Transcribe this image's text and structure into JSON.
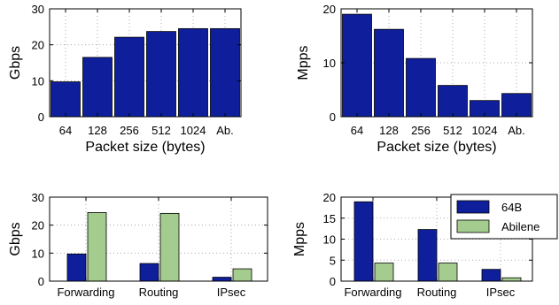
{
  "chart_data": [
    {
      "type": "bar",
      "ylabel": "Gbps",
      "xlabel": "Packet size (bytes)",
      "ylim": [
        0,
        30
      ],
      "yticks": [
        0,
        10,
        20,
        30
      ],
      "grid": true,
      "categories": [
        "64",
        "128",
        "256",
        "512",
        "1024",
        "Ab."
      ],
      "series": [
        {
          "values": [
            9.7,
            16.5,
            22.1,
            23.7,
            24.5,
            24.5
          ],
          "color": "#0f1f9c"
        }
      ]
    },
    {
      "type": "bar",
      "ylabel": "Mpps",
      "xlabel": "Packet size (bytes)",
      "ylim": [
        0,
        20
      ],
      "yticks": [
        0,
        10,
        20
      ],
      "grid": true,
      "categories": [
        "64",
        "128",
        "256",
        "512",
        "1024",
        "Ab."
      ],
      "series": [
        {
          "values": [
            19.0,
            16.2,
            10.8,
            5.8,
            3.0,
            4.3
          ],
          "color": "#0f1f9c"
        }
      ]
    },
    {
      "type": "bar",
      "ylabel": "Gbps",
      "xlabel": "",
      "ylim": [
        0,
        30
      ],
      "yticks": [
        0,
        10,
        20,
        30
      ],
      "grid": true,
      "categories": [
        "Forwarding",
        "Routing",
        "IPsec"
      ],
      "series": [
        {
          "name": "64B",
          "values": [
            9.7,
            6.3,
            1.4
          ],
          "color": "#0f1f9c"
        },
        {
          "name": "Abilene",
          "values": [
            24.5,
            24.2,
            4.4
          ],
          "color": "#a3cc8e"
        }
      ]
    },
    {
      "type": "bar",
      "ylabel": "Mpps",
      "xlabel": "",
      "ylim": [
        0,
        20
      ],
      "yticks": [
        0,
        5,
        10,
        15,
        20
      ],
      "grid": true,
      "categories": [
        "Forwarding",
        "Routing",
        "IPsec"
      ],
      "series": [
        {
          "name": "64B",
          "values": [
            18.9,
            12.3,
            2.8
          ],
          "color": "#0f1f9c"
        },
        {
          "name": "Abilene",
          "values": [
            4.3,
            4.3,
            0.8
          ],
          "color": "#a3cc8e"
        }
      ],
      "legend": {
        "placement": "top-right",
        "entries": [
          "64B",
          "Abilene"
        ]
      }
    }
  ]
}
